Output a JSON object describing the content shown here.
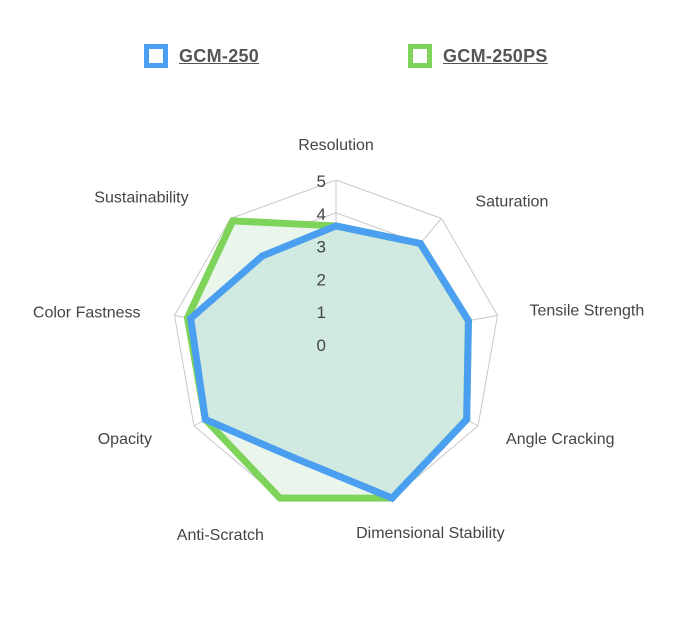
{
  "chart_data": {
    "type": "radar",
    "title": "",
    "axes": [
      "Resolution",
      "Saturation",
      "Tensile Strength",
      "Angle Cracking",
      "Dimensional Stability",
      "Anti-Scratch",
      "Opacity",
      "Color Fastness",
      "Sustainability"
    ],
    "ticks": [
      "0",
      "1",
      "2",
      "3",
      "4",
      "5"
    ],
    "rlim": [
      0,
      5
    ],
    "grid": true,
    "legend": "top",
    "series": [
      {
        "name": "GCM-250",
        "color": "#4a9ff0",
        "values": [
          3.6,
          4.0,
          4.1,
          4.6,
          5.0,
          3.7,
          4.6,
          4.5,
          3.5
        ]
      },
      {
        "name": "GCM-250PS",
        "color": "#7ed35a",
        "values": [
          3.6,
          4.0,
          4.1,
          4.6,
          5.0,
          5.0,
          4.6,
          4.6,
          4.9
        ]
      }
    ],
    "fill_color": "#e8f5ea"
  }
}
